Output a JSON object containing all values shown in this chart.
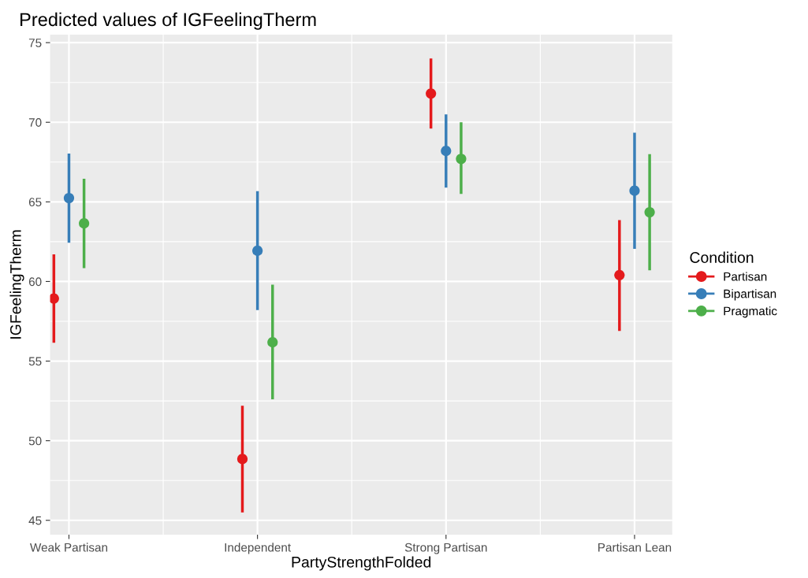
{
  "chart_data": {
    "type": "scatter",
    "title": "Predicted values of IGFeelingTherm",
    "xlabel": "PartyStrengthFolded",
    "ylabel": "IGFeelingTherm",
    "legend_title": "Condition",
    "categories": [
      "Weak Partisan",
      "Independent",
      "Strong Partisan",
      "Partisan Lean"
    ],
    "series": [
      {
        "name": "Partisan",
        "color": "#e41a1c",
        "values": [
          58.93,
          48.85,
          71.8,
          60.4
        ],
        "errors": [
          [
            56.15,
            61.7
          ],
          [
            45.5,
            52.2
          ],
          [
            69.6,
            74.0
          ],
          [
            56.9,
            63.85
          ]
        ]
      },
      {
        "name": "Bipartisan",
        "color": "#377eb8",
        "values": [
          65.24,
          61.93,
          68.2,
          65.7
        ],
        "errors": [
          [
            62.43,
            68.03
          ],
          [
            58.2,
            65.67
          ],
          [
            65.9,
            70.5
          ],
          [
            62.05,
            69.35
          ]
        ]
      },
      {
        "name": "Pragmatic",
        "color": "#4daf4a",
        "values": [
          63.65,
          56.18,
          67.7,
          64.35
        ],
        "errors": [
          [
            60.84,
            66.45
          ],
          [
            52.6,
            59.8
          ],
          [
            65.5,
            70.0
          ],
          [
            60.7,
            68.0
          ]
        ]
      }
    ],
    "ylim": [
      44.1,
      75.5
    ],
    "yticks": [
      45,
      50,
      55,
      60,
      65,
      70,
      75
    ],
    "grid": true,
    "legend": "right",
    "marker": "circle"
  }
}
